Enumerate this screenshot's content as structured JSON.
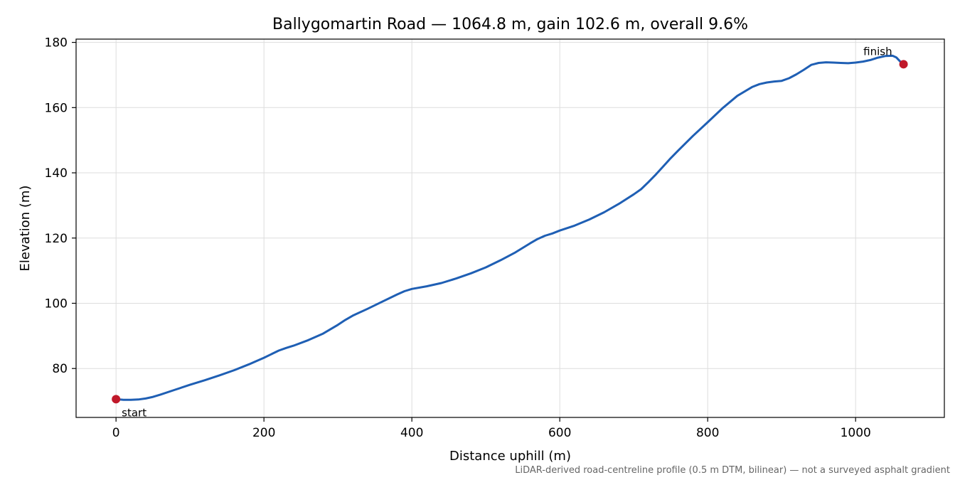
{
  "chart_data": {
    "type": "line",
    "title": "Ballygomartin Road — 1064.8 m, gain 102.6 m, overall 9.6%",
    "xlabel": "Distance uphill (m)",
    "ylabel": "Elevation (m)",
    "xlim": [
      -54,
      1120
    ],
    "ylim": [
      65,
      181
    ],
    "xticks": [
      0,
      200,
      400,
      600,
      800,
      1000
    ],
    "yticks": [
      80,
      100,
      120,
      140,
      160,
      180
    ],
    "grid": true,
    "line_color": "#1f5fb4",
    "marker_color": "#c0182a",
    "series": [
      {
        "x": [
          0,
          10,
          20,
          30,
          40,
          50,
          60,
          80,
          100,
          120,
          140,
          160,
          180,
          200,
          220,
          230,
          240,
          260,
          280,
          300,
          310,
          320,
          340,
          360,
          380,
          390,
          400,
          420,
          440,
          460,
          480,
          500,
          520,
          540,
          560,
          570,
          580,
          590,
          600,
          620,
          640,
          660,
          680,
          700,
          710,
          720,
          730,
          740,
          750,
          760,
          780,
          800,
          820,
          840,
          860,
          870,
          880,
          890,
          900,
          910,
          920,
          930,
          940,
          950,
          960,
          970,
          980,
          990,
          1000,
          1010,
          1020,
          1030,
          1040,
          1050,
          1055,
          1060,
          1064.8
        ],
        "y": [
          70.6,
          70.4,
          70.4,
          70.5,
          70.8,
          71.3,
          72.0,
          73.5,
          75.0,
          76.4,
          77.9,
          79.5,
          81.3,
          83.3,
          85.5,
          86.3,
          87.0,
          88.7,
          90.7,
          93.4,
          94.9,
          96.2,
          98.3,
          100.5,
          102.7,
          103.7,
          104.4,
          105.2,
          106.2,
          107.6,
          109.2,
          111.0,
          113.2,
          115.6,
          118.4,
          119.7,
          120.7,
          121.4,
          122.3,
          123.8,
          125.7,
          127.9,
          130.5,
          133.4,
          135.0,
          137.2,
          139.5,
          142.0,
          144.5,
          146.8,
          151.3,
          155.5,
          159.8,
          163.6,
          166.3,
          167.2,
          167.7,
          168.0,
          168.2,
          169.0,
          170.2,
          171.6,
          173.1,
          173.7,
          173.9,
          173.8,
          173.7,
          173.6,
          173.8,
          174.1,
          174.6,
          175.3,
          175.8,
          175.9,
          175.4,
          174.2,
          173.3
        ]
      }
    ],
    "annotations": [
      {
        "text": "start",
        "x": 0,
        "y": 70.6
      },
      {
        "text": "finish",
        "x": 1064.8,
        "y": 173.3
      }
    ],
    "footnote": "LiDAR-derived road-centreline profile (0.5 m DTM, bilinear) — not a surveyed asphalt gradient"
  }
}
